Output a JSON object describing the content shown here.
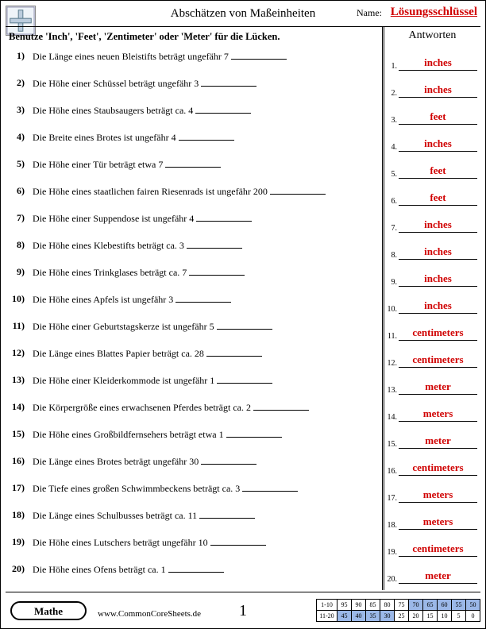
{
  "header": {
    "title": "Abschätzen von Maßeinheiten",
    "name_label": "Name:",
    "answer_key": "Lösungsschlüssel"
  },
  "instructions": "Benutze 'Inch', 'Feet', 'Zentimeter' oder 'Meter' für die Lücken.",
  "questions": [
    {
      "n": "1)",
      "text": "Die Länge eines neuen Bleistifts beträgt ungefähr 7"
    },
    {
      "n": "2)",
      "text": "Die Höhe einer Schüssel beträgt ungefähr 3"
    },
    {
      "n": "3)",
      "text": "Die Höhe eines Staubsaugers beträgt ca. 4"
    },
    {
      "n": "4)",
      "text": "Die Breite eines Brotes ist ungefähr 4"
    },
    {
      "n": "5)",
      "text": "Die Höhe einer Tür beträgt etwa 7"
    },
    {
      "n": "6)",
      "text": "Die Höhe eines staatlichen fairen Riesenrads ist ungefähr 200"
    },
    {
      "n": "7)",
      "text": "Die Höhe einer Suppendose ist ungefähr 4"
    },
    {
      "n": "8)",
      "text": "Die Höhe eines Klebestifts beträgt ca. 3"
    },
    {
      "n": "9)",
      "text": "Die Höhe eines Trinkglases beträgt ca. 7"
    },
    {
      "n": "10)",
      "text": "Die Höhe eines Apfels ist ungefähr 3"
    },
    {
      "n": "11)",
      "text": "Die Höhe einer Geburtstagskerze ist ungefähr 5"
    },
    {
      "n": "12)",
      "text": "Die Länge eines Blattes Papier beträgt ca. 28"
    },
    {
      "n": "13)",
      "text": "Die Höhe einer Kleiderkommode ist ungefähr 1"
    },
    {
      "n": "14)",
      "text": "Die Körpergröße eines erwachsenen Pferdes beträgt ca. 2"
    },
    {
      "n": "15)",
      "text": "Die Höhe eines Großbildfernsehers beträgt etwa 1"
    },
    {
      "n": "16)",
      "text": "Die Länge eines Brotes beträgt ungefähr 30"
    },
    {
      "n": "17)",
      "text": "Die Tiefe eines großen Schwimmbeckens beträgt ca. 3"
    },
    {
      "n": "18)",
      "text": "Die Länge eines Schulbusses beträgt ca. 11"
    },
    {
      "n": "19)",
      "text": "Die Höhe eines Lutschers beträgt ungefähr 10"
    },
    {
      "n": "20)",
      "text": "Die Höhe eines Ofens beträgt ca. 1"
    }
  ],
  "answers_title": "Antworten",
  "answers": [
    "inches",
    "inches",
    "feet",
    "inches",
    "feet",
    "feet",
    "inches",
    "inches",
    "inches",
    "inches",
    "centimeters",
    "centimeters",
    "meter",
    "meters",
    "meter",
    "centimeters",
    "meters",
    "meters",
    "centimeters",
    "meter"
  ],
  "footer": {
    "subject": "Mathe",
    "url": "www.CommonCoreSheets.de",
    "page_number": "1",
    "score_rows": [
      {
        "label": "1-10",
        "cells": [
          "95",
          "90",
          "85",
          "80",
          "75",
          "70",
          "65",
          "60",
          "55",
          "50"
        ],
        "shade_from": 5
      },
      {
        "label": "11-20",
        "cells": [
          "45",
          "40",
          "35",
          "30",
          "25",
          "20",
          "15",
          "10",
          "5",
          "0"
        ],
        "shade_from": 0
      }
    ]
  },
  "colors": {
    "answer_red": "#d00000",
    "shade_blue": "#9bb8e8"
  }
}
